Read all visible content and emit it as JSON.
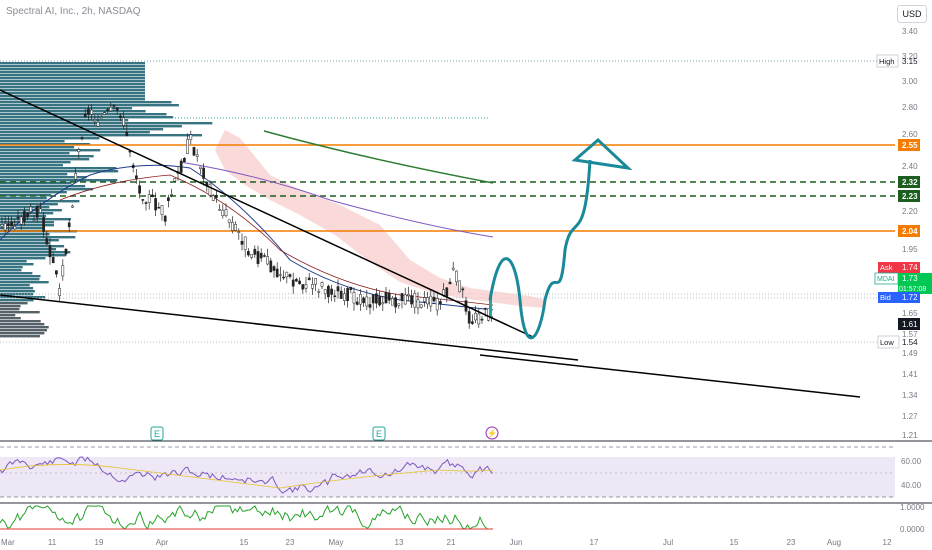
{
  "header": {
    "title": "Spectral AI, Inc., 2h, NASDAQ",
    "currency": "USD"
  },
  "colors": {
    "orange": "#f57c00",
    "darkgreen": "#1b5e20",
    "teal_arrow": "#1a8a9a",
    "volume_profile": "#2c6b7a",
    "ask": "#f23645",
    "bid": "#2962ff",
    "last": "#22ab94",
    "rsi_line": "#7e57c2",
    "rsi_band": "#ede7f6",
    "mfi_line": "#26a32a"
  },
  "price_axis": {
    "ticks": [
      "3.40",
      "3.20",
      "3.00",
      "2.80",
      "2.60",
      "2.40",
      "2.20",
      "1.95",
      "1.65",
      "1.57",
      "1.49",
      "1.41",
      "1.34",
      "1.27",
      "1.21"
    ],
    "high": {
      "label": "High",
      "value": "3.15"
    },
    "low": {
      "label": "Low",
      "value": "1.54"
    },
    "ask": {
      "label": "Ask",
      "value": "1.74"
    },
    "symbol": {
      "label": "MDAI",
      "value": "1.73",
      "countdown": "01:57:08"
    },
    "bid": {
      "label": "Bid",
      "value": "1.72"
    },
    "current": "1.61"
  },
  "level_labels": [
    {
      "value": "2.55",
      "kind": "orange"
    },
    {
      "value": "2.32",
      "kind": "green"
    },
    {
      "value": "2.23",
      "kind": "green"
    },
    {
      "value": "2.04",
      "kind": "orange"
    }
  ],
  "events": [
    "E",
    "E",
    "⚡"
  ],
  "rsi": {
    "ticks": [
      "60.00",
      "40.00"
    ]
  },
  "mfi": {
    "ticks": [
      "1.0000",
      "0.0000"
    ]
  },
  "time_axis": [
    "Mar",
    "11",
    "19",
    "Apr",
    "15",
    "23",
    "May",
    "13",
    "21",
    "Jun",
    "17",
    "Jul",
    "15",
    "23",
    "Aug",
    "12"
  ],
  "chart_data": {
    "type": "line",
    "title": "Spectral AI, Inc., 2h, NASDAQ",
    "xlabel": "",
    "ylabel": "",
    "ylim": [
      1.21,
      3.4
    ],
    "x": [
      "Mar",
      "11",
      "19",
      "Apr",
      "15",
      "23",
      "May",
      "13",
      "21"
    ],
    "series": [
      {
        "values": [
          2.1,
          1.95,
          2.65,
          2.4,
          2.0,
          1.85,
          1.75,
          1.7,
          1.63
        ]
      }
    ],
    "horizontal_levels": [
      2.55,
      2.32,
      2.23,
      2.04
    ],
    "high": 3.15,
    "low": 1.54,
    "last": 1.73,
    "grid": false
  }
}
